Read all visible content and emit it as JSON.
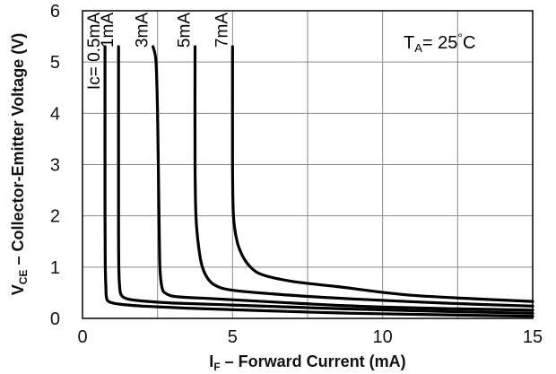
{
  "chart_data": {
    "type": "line",
    "xlabel": {
      "main": "I",
      "sub": "F",
      "rest": " – Forward Current  (mA)"
    },
    "ylabel": {
      "main": "V",
      "sub": "CE",
      "rest": " – Collector-Emitter Voltage  (V)"
    },
    "xlim": [
      0,
      15
    ],
    "ylim": [
      0,
      6
    ],
    "x_ticks": [
      "0",
      "5",
      "10",
      "15"
    ],
    "y_ticks": [
      "0",
      "1",
      "2",
      "3",
      "4",
      "5",
      "6"
    ],
    "grid": true,
    "annotation": {
      "main": "T",
      "sub": "A",
      "rest": "= 25",
      "deg": "°",
      "unit": "C"
    },
    "series": [
      {
        "name": "Ic= 0.5mA",
        "x": [
          0.75,
          0.75,
          0.76,
          0.78,
          0.8,
          0.9,
          1.2,
          2.0,
          3.5,
          6.0,
          9.0,
          12.0,
          15.0
        ],
        "y": [
          5.3,
          2.0,
          1.0,
          0.6,
          0.4,
          0.32,
          0.28,
          0.24,
          0.2,
          0.15,
          0.1,
          0.07,
          0.04
        ]
      },
      {
        "name": "1mA",
        "x": [
          1.2,
          1.2,
          1.21,
          1.24,
          1.3,
          1.5,
          2.0,
          3.0,
          5.0,
          8.0,
          11.0,
          15.0
        ],
        "y": [
          5.3,
          2.0,
          1.0,
          0.6,
          0.45,
          0.38,
          0.34,
          0.3,
          0.26,
          0.2,
          0.15,
          0.1
        ]
      },
      {
        "name": "3mA",
        "x": [
          2.35,
          2.45,
          2.5,
          2.55,
          2.58,
          2.65,
          2.8,
          3.2,
          4.5,
          7.0,
          10.0,
          15.0
        ],
        "y": [
          5.3,
          5.0,
          4.0,
          2.0,
          1.0,
          0.6,
          0.48,
          0.42,
          0.38,
          0.3,
          0.22,
          0.16
        ]
      },
      {
        "name": "5mA",
        "x": [
          3.75,
          3.75,
          3.78,
          3.85,
          3.95,
          4.1,
          4.4,
          5.0,
          6.5,
          9.0,
          12.0,
          15.0
        ],
        "y": [
          5.3,
          3.0,
          2.0,
          1.5,
          1.1,
          0.85,
          0.65,
          0.55,
          0.47,
          0.38,
          0.3,
          0.24
        ]
      },
      {
        "name": "7mA",
        "x": [
          5.0,
          5.0,
          5.03,
          5.15,
          5.35,
          5.6,
          6.0,
          7.0,
          8.5,
          11.0,
          15.0
        ],
        "y": [
          5.3,
          3.0,
          2.0,
          1.5,
          1.2,
          1.0,
          0.85,
          0.72,
          0.62,
          0.45,
          0.33
        ]
      }
    ]
  }
}
